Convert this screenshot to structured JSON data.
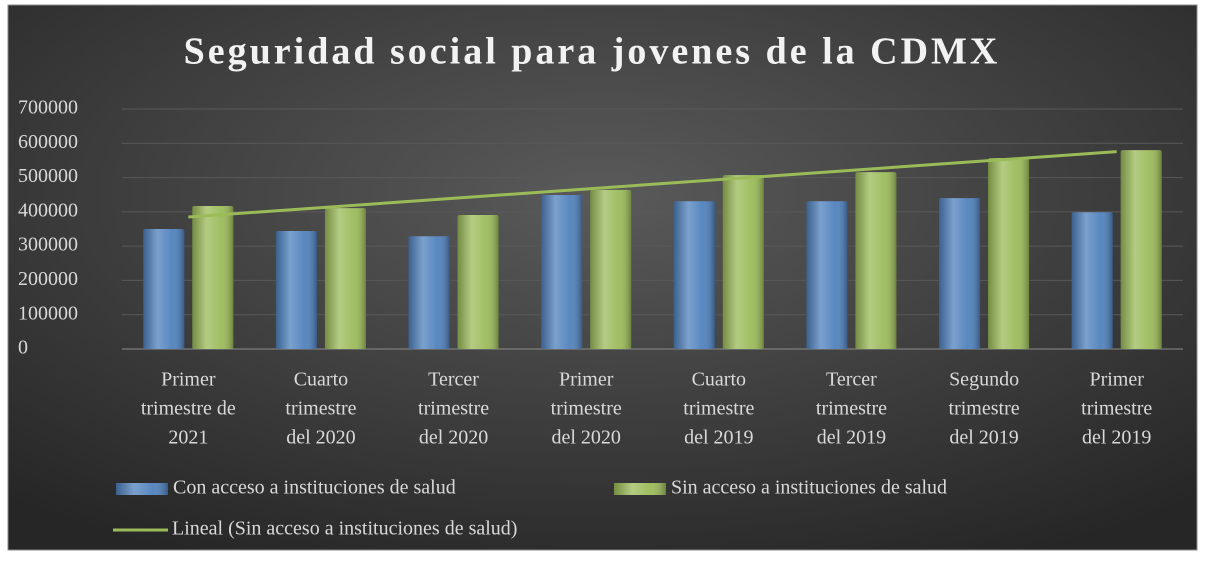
{
  "chart_data": {
    "type": "bar",
    "title": "Seguridad social para jovenes de la CDMX",
    "categories": [
      [
        "Primer",
        "trimestre de",
        "2021"
      ],
      [
        "Cuarto",
        "trimestre",
        "del 2020"
      ],
      [
        "Tercer",
        "trimestre",
        "del 2020"
      ],
      [
        "Primer",
        "trimestre",
        "del 2020"
      ],
      [
        "Cuarto",
        "trimestre",
        "del 2019"
      ],
      [
        "Tercer",
        "trimestre",
        "del 2019"
      ],
      [
        "Segundo",
        "trimestre",
        "del 2019"
      ],
      [
        "Primer",
        "trimestre",
        "del 2019"
      ]
    ],
    "series": [
      {
        "name": "Con  acceso a instituciones de salud",
        "color": "#4f81bd",
        "values": [
          350000,
          344000,
          329000,
          449000,
          431000,
          431000,
          440000,
          399000
        ]
      },
      {
        "name": "Sin acceso a instituciones de salud",
        "color": "#9bbb59",
        "values": [
          417000,
          411000,
          391000,
          464000,
          507000,
          516000,
          557000,
          580000
        ]
      }
    ],
    "trendline": {
      "name": "Lineal (Sin acceso a instituciones de salud)",
      "series": 1,
      "color": "#9bbb59"
    },
    "ylim": [
      0,
      700000
    ],
    "yticks": [
      0,
      100000,
      200000,
      300000,
      400000,
      500000,
      600000,
      700000
    ],
    "grid": true,
    "legend": "bottom"
  }
}
